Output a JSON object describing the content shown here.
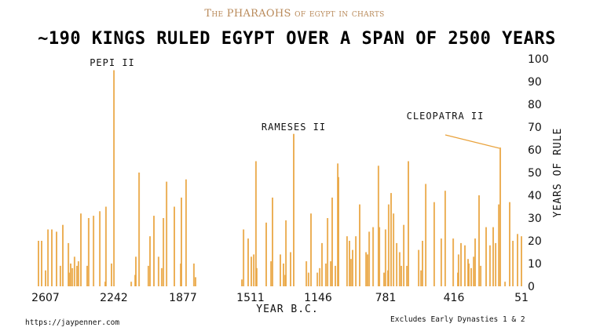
{
  "header": {
    "subtitle": "The PHARAOHS of egypt in charts",
    "title": "~190 KINGS RULED EGYPT OVER A SPAN OF 2500 YEARS"
  },
  "footer": {
    "url": "https://jaypenner.com",
    "note": "Excludes Early Dynasties 1 & 2"
  },
  "chart_data": {
    "type": "bar",
    "title": "~190 KINGS RULED EGYPT OVER A SPAN OF 2500 YEARS",
    "xlabel": "YEAR B.C.",
    "ylabel": "YEARS OF RULE",
    "xlim": [
      2650,
      40
    ],
    "x_reversed": true,
    "ylim": [
      0,
      100
    ],
    "x_ticks": [
      "2607",
      "2242",
      "1877",
      "1511",
      "1146",
      "781",
      "416",
      "51"
    ],
    "y_ticks": [
      "0",
      "10",
      "20",
      "30",
      "40",
      "50",
      "60",
      "70",
      "80",
      "90",
      "100"
    ],
    "y_axis_position": "right",
    "grid": false,
    "bar_color": "#E9A23B",
    "annotations": [
      {
        "text": "PEPI II",
        "year": 2239,
        "value": 95
      },
      {
        "text": "RAMESES II",
        "year": 1272,
        "value": 67
      },
      {
        "text": "CLEOPATRA II",
        "year": 161,
        "value": 61
      }
    ],
    "points": [
      [
        2645,
        20
      ],
      [
        2628,
        20
      ],
      [
        2607,
        7
      ],
      [
        2594,
        25
      ],
      [
        2573,
        25
      ],
      [
        2548,
        24
      ],
      [
        2527,
        9
      ],
      [
        2514,
        27
      ],
      [
        2484,
        19
      ],
      [
        2480,
        6
      ],
      [
        2472,
        10
      ],
      [
        2463,
        8
      ],
      [
        2451,
        13
      ],
      [
        2438,
        9
      ],
      [
        2430,
        11
      ],
      [
        2417,
        32
      ],
      [
        2383,
        9
      ],
      [
        2375,
        30
      ],
      [
        2349,
        31
      ],
      [
        2315,
        33
      ],
      [
        2286,
        2
      ],
      [
        2282,
        35
      ],
      [
        2252,
        10
      ],
      [
        2239,
        95
      ],
      [
        2146,
        2
      ],
      [
        2125,
        5
      ],
      [
        2121,
        13
      ],
      [
        2104,
        50
      ],
      [
        2054,
        9
      ],
      [
        2045,
        22
      ],
      [
        2024,
        31
      ],
      [
        1999,
        13
      ],
      [
        1982,
        8
      ],
      [
        1973,
        30
      ],
      [
        1956,
        46
      ],
      [
        1914,
        35
      ],
      [
        1880,
        10
      ],
      [
        1876,
        39
      ],
      [
        1851,
        47
      ],
      [
        1809,
        10
      ],
      [
        1800,
        4
      ],
      [
        1551,
        3
      ],
      [
        1542,
        25
      ],
      [
        1517,
        21
      ],
      [
        1500,
        13
      ],
      [
        1487,
        14
      ],
      [
        1475,
        55
      ],
      [
        1471,
        8
      ],
      [
        1420,
        28
      ],
      [
        1394,
        11
      ],
      [
        1386,
        39
      ],
      [
        1344,
        14
      ],
      [
        1327,
        10
      ],
      [
        1318,
        5
      ],
      [
        1314,
        29
      ],
      [
        1289,
        15
      ],
      [
        1272,
        67
      ],
      [
        1204,
        11
      ],
      [
        1192,
        6
      ],
      [
        1179,
        32
      ],
      [
        1145,
        6
      ],
      [
        1132,
        8
      ],
      [
        1120,
        19
      ],
      [
        1099,
        10
      ],
      [
        1090,
        30
      ],
      [
        1073,
        11
      ],
      [
        1065,
        39
      ],
      [
        1048,
        9
      ],
      [
        1035,
        54
      ],
      [
        1031,
        48
      ],
      [
        985,
        22
      ],
      [
        972,
        20
      ],
      [
        964,
        12
      ],
      [
        955,
        16
      ],
      [
        938,
        22
      ],
      [
        917,
        36
      ],
      [
        883,
        15
      ],
      [
        875,
        14
      ],
      [
        866,
        24
      ],
      [
        845,
        26
      ],
      [
        816,
        53
      ],
      [
        811,
        26
      ],
      [
        786,
        6
      ],
      [
        778,
        25
      ],
      [
        765,
        7
      ],
      [
        761,
        36
      ],
      [
        748,
        41
      ],
      [
        735,
        32
      ],
      [
        718,
        19
      ],
      [
        702,
        15
      ],
      [
        693,
        9
      ],
      [
        680,
        27
      ],
      [
        663,
        9
      ],
      [
        655,
        55
      ],
      [
        600,
        16
      ],
      [
        587,
        7
      ],
      [
        579,
        20
      ],
      [
        562,
        45
      ],
      [
        516,
        37
      ],
      [
        478,
        21
      ],
      [
        457,
        42
      ],
      [
        414,
        21
      ],
      [
        389,
        6
      ],
      [
        385,
        14
      ],
      [
        372,
        19
      ],
      [
        351,
        18
      ],
      [
        334,
        12
      ],
      [
        330,
        10
      ],
      [
        317,
        8
      ],
      [
        304,
        13
      ],
      [
        296,
        21
      ],
      [
        275,
        40
      ],
      [
        266,
        9
      ],
      [
        237,
        26
      ],
      [
        216,
        18
      ],
      [
        199,
        26
      ],
      [
        186,
        19
      ],
      [
        169,
        36
      ],
      [
        161,
        61
      ],
      [
        135,
        2
      ],
      [
        110,
        37
      ],
      [
        93,
        20
      ],
      [
        68,
        23
      ],
      [
        47,
        22
      ]
    ]
  }
}
